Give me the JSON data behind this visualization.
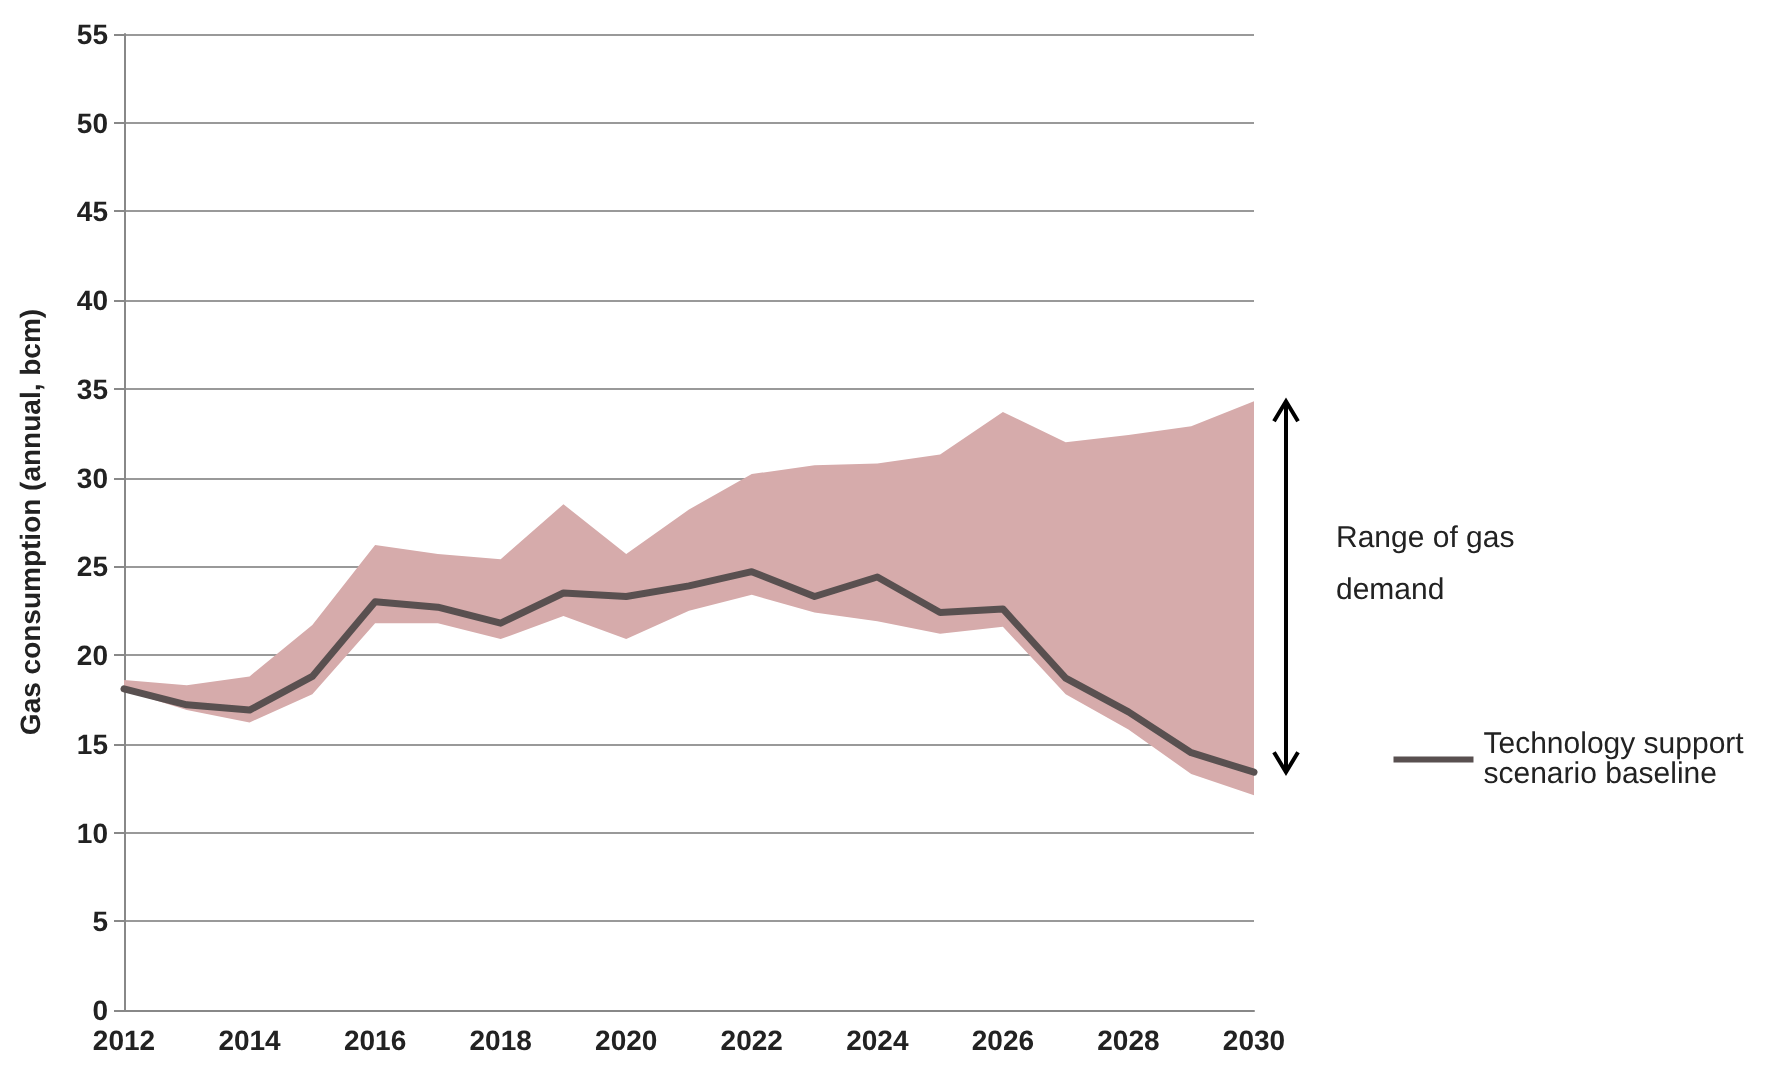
{
  "chart_data": {
    "type": "line",
    "ylabel": "Gas consumption (annual, bcm)",
    "categories": [
      "2012",
      null,
      "2014",
      null,
      "2016",
      null,
      "2018",
      null,
      "2020",
      null,
      "2022",
      null,
      "2024",
      null,
      "2026",
      null,
      "2028",
      null,
      "2030"
    ],
    "series": [
      {
        "name": "Technology support scenario baseline",
        "color": "#595050",
        "values": [
          18.1,
          17.2,
          16.9,
          18.8,
          23.0,
          22.7,
          21.8,
          23.5,
          23.3,
          23.9,
          24.7,
          23.3,
          24.4,
          22.4,
          22.6,
          18.7,
          16.8,
          14.5,
          13.4
        ],
        "upper": [
          18.6,
          18.3,
          18.8,
          21.7,
          26.2,
          25.7,
          25.4,
          28.5,
          25.7,
          28.2,
          30.2,
          30.7,
          30.8,
          31.3,
          33.7,
          32.0,
          32.4,
          32.9,
          34.3
        ],
        "lower": [
          18.0,
          16.9,
          16.2,
          17.8,
          21.8,
          21.8,
          20.9,
          22.2,
          20.9,
          22.5,
          23.4,
          22.4,
          21.9,
          21.2,
          21.6,
          17.8,
          15.8,
          13.3,
          12.1
        ]
      }
    ],
    "annotations": [
      "Range of gas demand"
    ],
    "ylim": [
      0,
      55
    ],
    "yticks": [
      0,
      5,
      10,
      15,
      20,
      25,
      30,
      35,
      40,
      45,
      50,
      55
    ],
    "grid": "y",
    "legend": "right",
    "marker": "none",
    "line_style": "solid"
  }
}
